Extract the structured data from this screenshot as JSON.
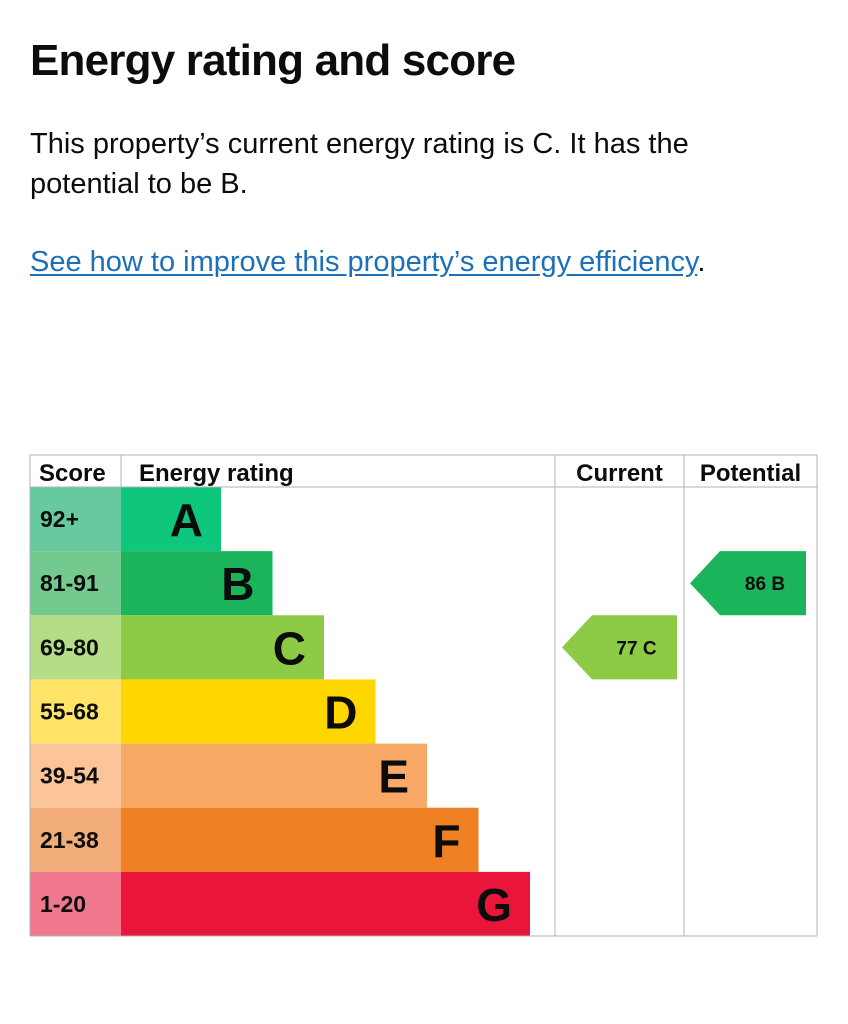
{
  "heading": "Energy rating and score",
  "description": "This property’s current energy rating is C. It has the potential to be B.",
  "improve_link": {
    "text": "See how to improve this property’s energy efficiency",
    "suffix": "."
  },
  "chart_data": {
    "type": "bar",
    "columns": {
      "score": "Score",
      "rating": "Energy rating",
      "current": "Current",
      "potential": "Potential"
    },
    "bands": [
      {
        "score": "92+",
        "letter": "A",
        "color": "#0fc67d",
        "score_bg": "#67ca9f"
      },
      {
        "score": "81-91",
        "letter": "B",
        "color": "#1bb45a",
        "score_bg": "#74c98e"
      },
      {
        "score": "69-80",
        "letter": "C",
        "color": "#8dcb46",
        "score_bg": "#b4dd85"
      },
      {
        "score": "55-68",
        "letter": "D",
        "color": "#ffd600",
        "score_bg": "#ffe468"
      },
      {
        "score": "39-54",
        "letter": "E",
        "color": "#f8a966",
        "score_bg": "#fbc499"
      },
      {
        "score": "21-38",
        "letter": "F",
        "color": "#ef8024",
        "score_bg": "#f2ac77"
      },
      {
        "score": "1-20",
        "letter": "G",
        "color": "#e9153b",
        "score_bg": "#f0788d"
      }
    ],
    "current": {
      "value": 77,
      "letter": "C",
      "label": "77  C",
      "color": "#8dcb46"
    },
    "potential": {
      "value": 86,
      "letter": "B",
      "label": "86  B",
      "color": "#1bb45a"
    }
  }
}
